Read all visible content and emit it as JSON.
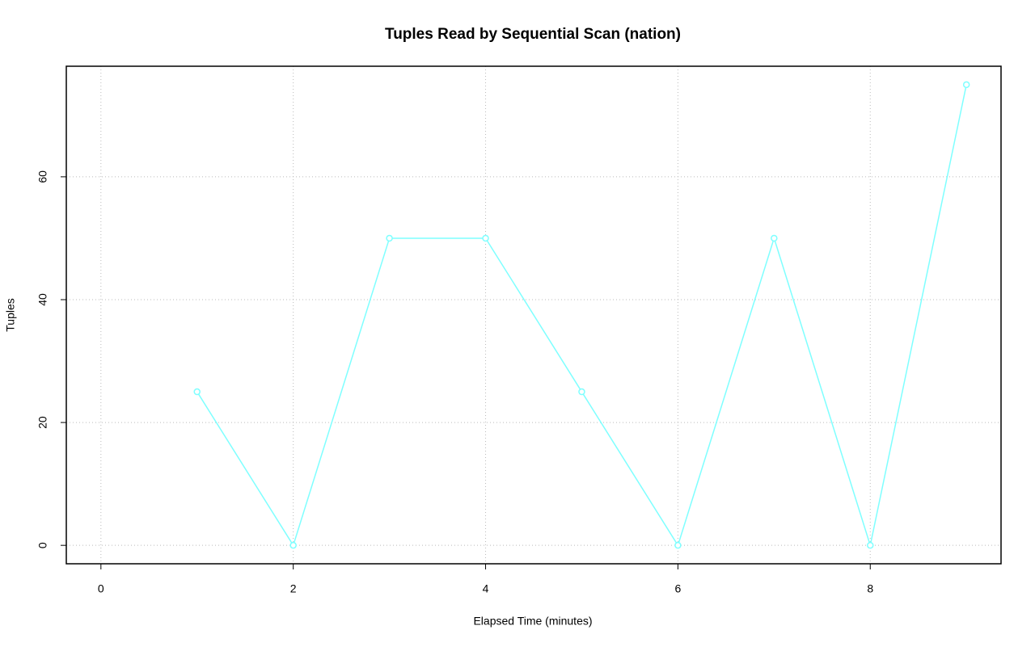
{
  "chart_data": {
    "type": "line",
    "title": "Tuples Read by Sequential Scan (nation)",
    "x_label": "Elapsed Time (minutes)",
    "y_label": "Tuples",
    "x": [
      1,
      2,
      3,
      4,
      5,
      6,
      7,
      8,
      9
    ],
    "series": [
      {
        "name": "Tuples",
        "color": "#7fffff",
        "values": [
          25,
          0,
          50,
          50,
          25,
          0,
          50,
          0,
          75
        ]
      }
    ],
    "xlim": [
      -0.36,
      9.36
    ],
    "xticks": [
      0,
      2,
      4,
      6,
      8
    ],
    "ylim": [
      -3,
      78
    ],
    "yticks": [
      0,
      20,
      40,
      60
    ],
    "grid": true
  }
}
